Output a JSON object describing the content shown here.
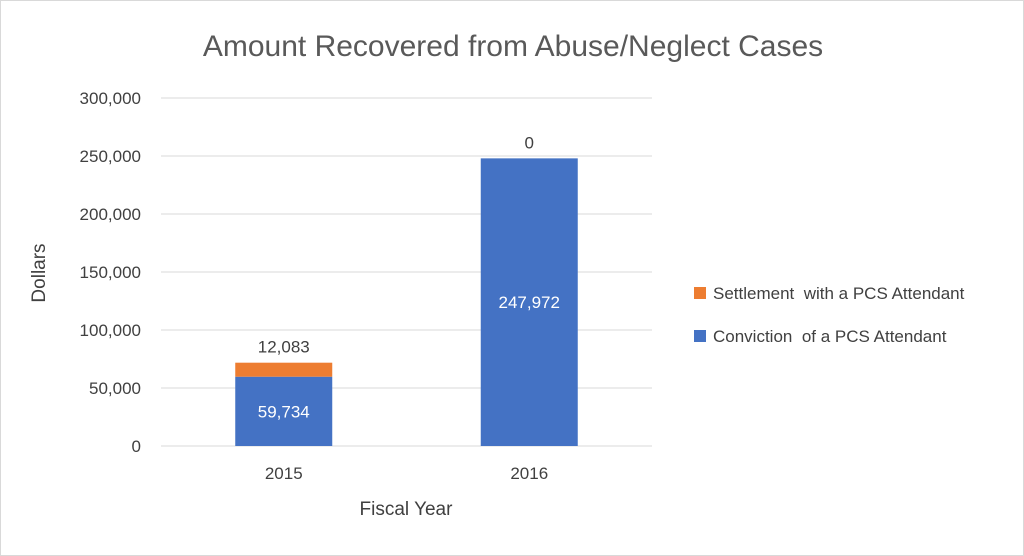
{
  "chart_data": {
    "type": "bar",
    "stacked": true,
    "title": "Amount Recovered from Abuse/Neglect Cases",
    "xlabel": "Fiscal Year",
    "ylabel": "Dollars",
    "categories": [
      "2015",
      "2016"
    ],
    "ylim": [
      0,
      300000
    ],
    "yticks": [
      0,
      50000,
      100000,
      150000,
      200000,
      250000,
      300000
    ],
    "ytick_labels": [
      "0",
      "50,000",
      "100,000",
      "150,000",
      "200,000",
      "250,000",
      "300,000"
    ],
    "grid": true,
    "legend_position": "right",
    "series": [
      {
        "name": "Conviction  of a PCS Attendant",
        "color": "#4472c4",
        "values": [
          59734,
          247972
        ],
        "labels": [
          "59,734",
          "247,972"
        ]
      },
      {
        "name": "Settlement  with a PCS Attendant",
        "color": "#ed7d31",
        "values": [
          12083,
          0
        ],
        "labels": [
          "12,083",
          "0"
        ]
      }
    ],
    "legend_order": [
      1,
      0
    ]
  }
}
